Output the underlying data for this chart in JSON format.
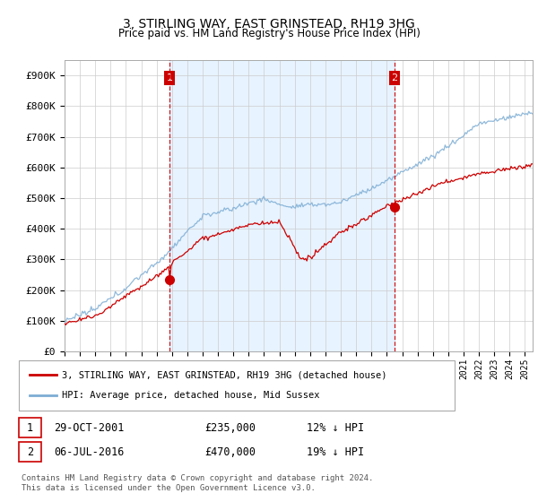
{
  "title": "3, STIRLING WAY, EAST GRINSTEAD, RH19 3HG",
  "subtitle": "Price paid vs. HM Land Registry's House Price Index (HPI)",
  "ylabel_ticks": [
    "£0",
    "£100K",
    "£200K",
    "£300K",
    "£400K",
    "£500K",
    "£600K",
    "£700K",
    "£800K",
    "£900K"
  ],
  "ytick_values": [
    0,
    100000,
    200000,
    300000,
    400000,
    500000,
    600000,
    700000,
    800000,
    900000
  ],
  "ylim": [
    0,
    950000
  ],
  "xlim_start": 1995.0,
  "xlim_end": 2025.5,
  "transaction1": {
    "date_num": 2001.83,
    "price": 235000,
    "label": "1"
  },
  "transaction2": {
    "date_num": 2016.5,
    "price": 470000,
    "label": "2"
  },
  "legend_entry1": "3, STIRLING WAY, EAST GRINSTEAD, RH19 3HG (detached house)",
  "legend_entry2": "HPI: Average price, detached house, Mid Sussex",
  "footnote": "Contains HM Land Registry data © Crown copyright and database right 2024.\nThis data is licensed under the Open Government Licence v3.0.",
  "line_color_red": "#cc0000",
  "line_color_blue": "#7dadd4",
  "vline_color": "#cc0000",
  "shade_color": "#ddeeff",
  "grid_color": "#cccccc",
  "background_color": "#ffffff",
  "box_label_color": "#cc0000",
  "date1": "29-OCT-2001",
  "price1": "£235,000",
  "pct1": "12% ↓ HPI",
  "date2": "06-JUL-2016",
  "price2": "£470,000",
  "pct2": "19% ↓ HPI"
}
